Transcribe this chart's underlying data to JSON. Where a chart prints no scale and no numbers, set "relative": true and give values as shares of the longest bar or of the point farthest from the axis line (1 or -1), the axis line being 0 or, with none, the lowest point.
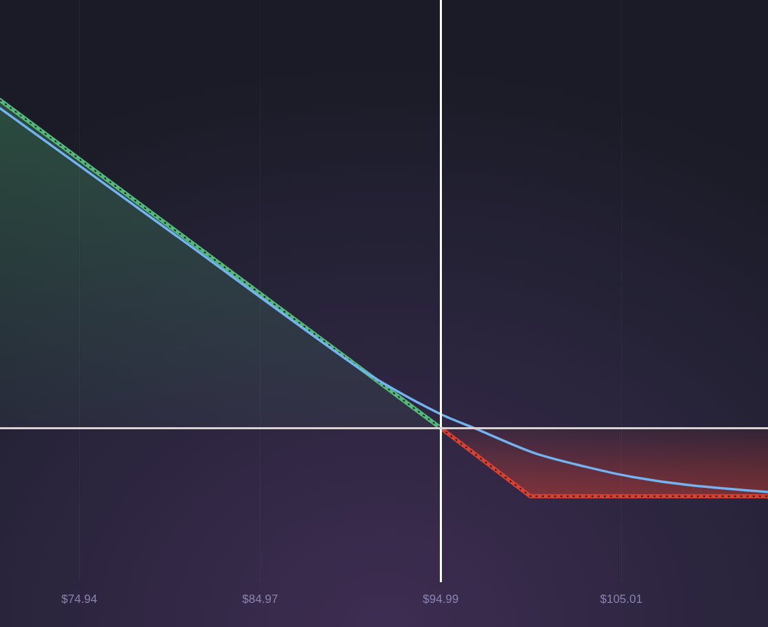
{
  "chart_data": {
    "type": "area",
    "relative": true,
    "xlim": [
      70.54,
      113.15
    ],
    "xticks": [
      {
        "value": 74.94,
        "label": "$74.94"
      },
      {
        "value": 84.97,
        "label": "$84.97"
      },
      {
        "value": 94.99,
        "label": "$94.99"
      },
      {
        "value": 105.01,
        "label": "$105.01"
      }
    ],
    "grid": "x",
    "marker": "none",
    "line_style": "dotted",
    "ref_lines": [
      {
        "axis": "x",
        "value": 94.99,
        "color": "#ffffff"
      },
      {
        "axis": "y",
        "value": 0,
        "color": "#d9d2d6"
      }
    ],
    "series": [
      {
        "color": "#52b97a",
        "x": [
          70.54,
          94.99
        ],
        "values": [
          1,
          0
        ]
      },
      {
        "color": "#d9402f",
        "x": [
          94.99,
          99.96,
          113.15
        ],
        "values": [
          0,
          -0.208,
          -0.208
        ]
      },
      {
        "type": "line",
        "color": "#74b3f2",
        "line_style": "solid",
        "x": [
          70.54,
          80.1,
          89.84,
          92.33,
          95.0,
          96.84,
          100.17,
          103.03,
          105.63,
          108.77,
          113.12
        ],
        "values": [
          0.975,
          0.595,
          0.206,
          0.12,
          0.042,
          0,
          -0.076,
          -0.118,
          -0.149,
          -0.174,
          -0.195
        ]
      }
    ]
  }
}
